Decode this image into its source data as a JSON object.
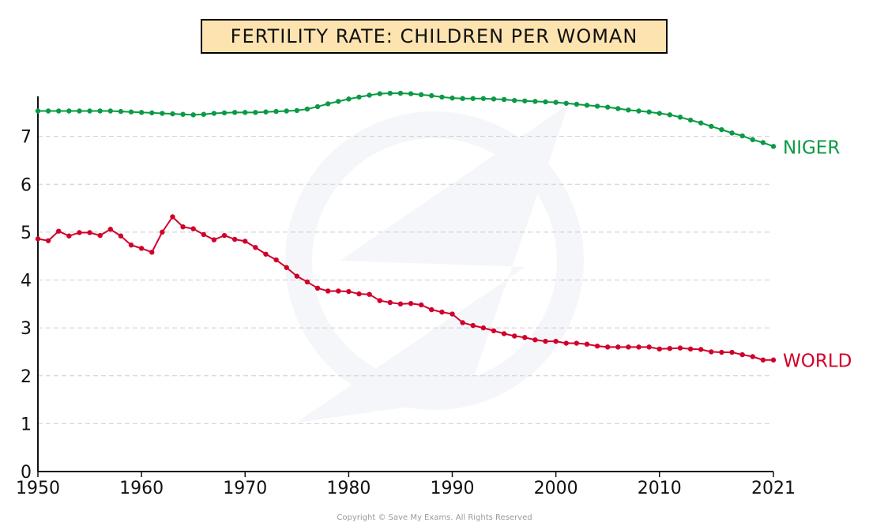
{
  "chart_data": {
    "type": "line",
    "title": "FERTILITY RATE: CHILDREN PER WOMAN",
    "xlabel": "",
    "ylabel": "",
    "xlim": [
      1950,
      2021
    ],
    "ylim": [
      0,
      8
    ],
    "x_ticks": [
      "1950",
      "1960",
      "1970",
      "1980",
      "1990",
      "2000",
      "2010",
      "2021"
    ],
    "y_ticks": [
      "0",
      "1",
      "2",
      "3",
      "4",
      "5",
      "6",
      "7"
    ],
    "grid": true,
    "x": [
      1950,
      1951,
      1952,
      1953,
      1954,
      1955,
      1956,
      1957,
      1958,
      1959,
      1960,
      1961,
      1962,
      1963,
      1964,
      1965,
      1966,
      1967,
      1968,
      1969,
      1970,
      1971,
      1972,
      1973,
      1974,
      1975,
      1976,
      1977,
      1978,
      1979,
      1980,
      1981,
      1982,
      1983,
      1984,
      1985,
      1986,
      1987,
      1988,
      1989,
      1990,
      1991,
      1992,
      1993,
      1994,
      1995,
      1996,
      1997,
      1998,
      1999,
      2000,
      2001,
      2002,
      2003,
      2004,
      2005,
      2006,
      2007,
      2008,
      2009,
      2010,
      2011,
      2012,
      2013,
      2014,
      2015,
      2016,
      2017,
      2018,
      2019,
      2020,
      2021
    ],
    "series": [
      {
        "name": "NIGER",
        "color": "#0a9a45",
        "values": [
          7.53,
          7.53,
          7.53,
          7.53,
          7.53,
          7.53,
          7.53,
          7.53,
          7.52,
          7.51,
          7.5,
          7.49,
          7.48,
          7.47,
          7.46,
          7.45,
          7.46,
          7.48,
          7.49,
          7.5,
          7.5,
          7.5,
          7.51,
          7.52,
          7.53,
          7.54,
          7.57,
          7.62,
          7.68,
          7.73,
          7.78,
          7.82,
          7.86,
          7.89,
          7.9,
          7.9,
          7.89,
          7.87,
          7.85,
          7.82,
          7.8,
          7.79,
          7.79,
          7.79,
          7.78,
          7.77,
          7.75,
          7.74,
          7.73,
          7.72,
          7.71,
          7.69,
          7.67,
          7.65,
          7.63,
          7.61,
          7.58,
          7.55,
          7.53,
          7.51,
          7.48,
          7.45,
          7.4,
          7.34,
          7.28,
          7.21,
          7.14,
          7.07,
          7.01,
          6.93,
          6.87,
          6.79
        ]
      },
      {
        "name": "WORLD",
        "color": "#d1002a",
        "values": [
          4.86,
          4.82,
          5.02,
          4.92,
          4.99,
          4.99,
          4.93,
          5.06,
          4.92,
          4.73,
          4.66,
          4.58,
          5.0,
          5.32,
          5.11,
          5.07,
          4.95,
          4.84,
          4.93,
          4.85,
          4.81,
          4.68,
          4.54,
          4.42,
          4.26,
          4.08,
          3.96,
          3.83,
          3.77,
          3.77,
          3.76,
          3.71,
          3.7,
          3.57,
          3.53,
          3.5,
          3.51,
          3.48,
          3.38,
          3.33,
          3.29,
          3.11,
          3.05,
          3.0,
          2.94,
          2.88,
          2.83,
          2.8,
          2.75,
          2.72,
          2.72,
          2.68,
          2.68,
          2.66,
          2.62,
          2.6,
          2.6,
          2.6,
          2.6,
          2.6,
          2.56,
          2.57,
          2.58,
          2.56,
          2.55,
          2.5,
          2.49,
          2.49,
          2.44,
          2.4,
          2.33,
          2.33
        ]
      }
    ]
  },
  "footer": {
    "copyright": "Copyright © Save My Exams. All Rights Reserved"
  }
}
